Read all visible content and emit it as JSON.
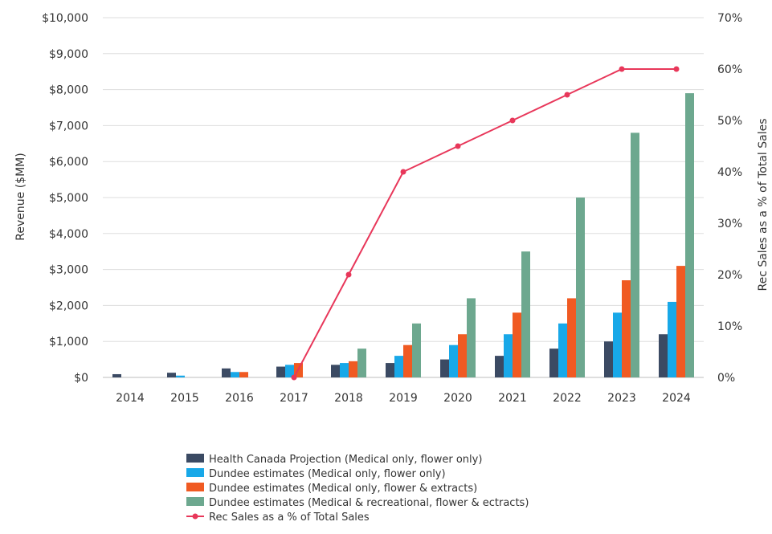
{
  "chart_data": {
    "type": "bar",
    "categories": [
      "2014",
      "2015",
      "2016",
      "2017",
      "2018",
      "2019",
      "2020",
      "2021",
      "2022",
      "2023",
      "2024"
    ],
    "ylabel": "Revenue ($MM)",
    "y2label": "Rec Sales as a % of Total Sales",
    "ylim": [
      0,
      10000
    ],
    "y2lim": [
      0,
      70
    ],
    "yticks": [
      "$0",
      "$1,000",
      "$2,000",
      "$3,000",
      "$4,000",
      "$5,000",
      "$6,000",
      "$7,000",
      "$8,000",
      "$9,000",
      "$10,000"
    ],
    "y2ticks": [
      "0%",
      "10%",
      "20%",
      "30%",
      "40%",
      "50%",
      "60%",
      "70%"
    ],
    "grid": true,
    "legend_position": "bottom",
    "series": [
      {
        "name": "Health Canada Projection (Medical only, flower only)",
        "type": "bar",
        "axis": "left",
        "color": "#3b4a63",
        "values": [
          90,
          130,
          250,
          300,
          350,
          400,
          500,
          600,
          800,
          1000,
          1200
        ]
      },
      {
        "name": "Dundee estimates (Medical only, flower only)",
        "type": "bar",
        "axis": "left",
        "color": "#18a8e8",
        "values": [
          null,
          50,
          150,
          350,
          400,
          600,
          900,
          1200,
          1500,
          1800,
          2100
        ]
      },
      {
        "name": "Dundee estimates (Medical only, flower & extracts)",
        "type": "bar",
        "axis": "left",
        "color": "#f05a22",
        "values": [
          null,
          null,
          150,
          400,
          450,
          900,
          1200,
          1800,
          2200,
          2700,
          3100
        ]
      },
      {
        "name": "Dundee estimates (Medical & recreational, flower & ectracts)",
        "type": "bar",
        "axis": "left",
        "color": "#6da88f",
        "values": [
          null,
          null,
          null,
          null,
          800,
          1500,
          2200,
          3500,
          5000,
          6800,
          7900
        ]
      },
      {
        "name": "Rec Sales as a % of Total Sales",
        "type": "line",
        "axis": "right",
        "color": "#e8375a",
        "values": [
          null,
          null,
          null,
          0,
          20,
          40,
          45,
          50,
          55,
          60,
          60
        ]
      }
    ]
  }
}
